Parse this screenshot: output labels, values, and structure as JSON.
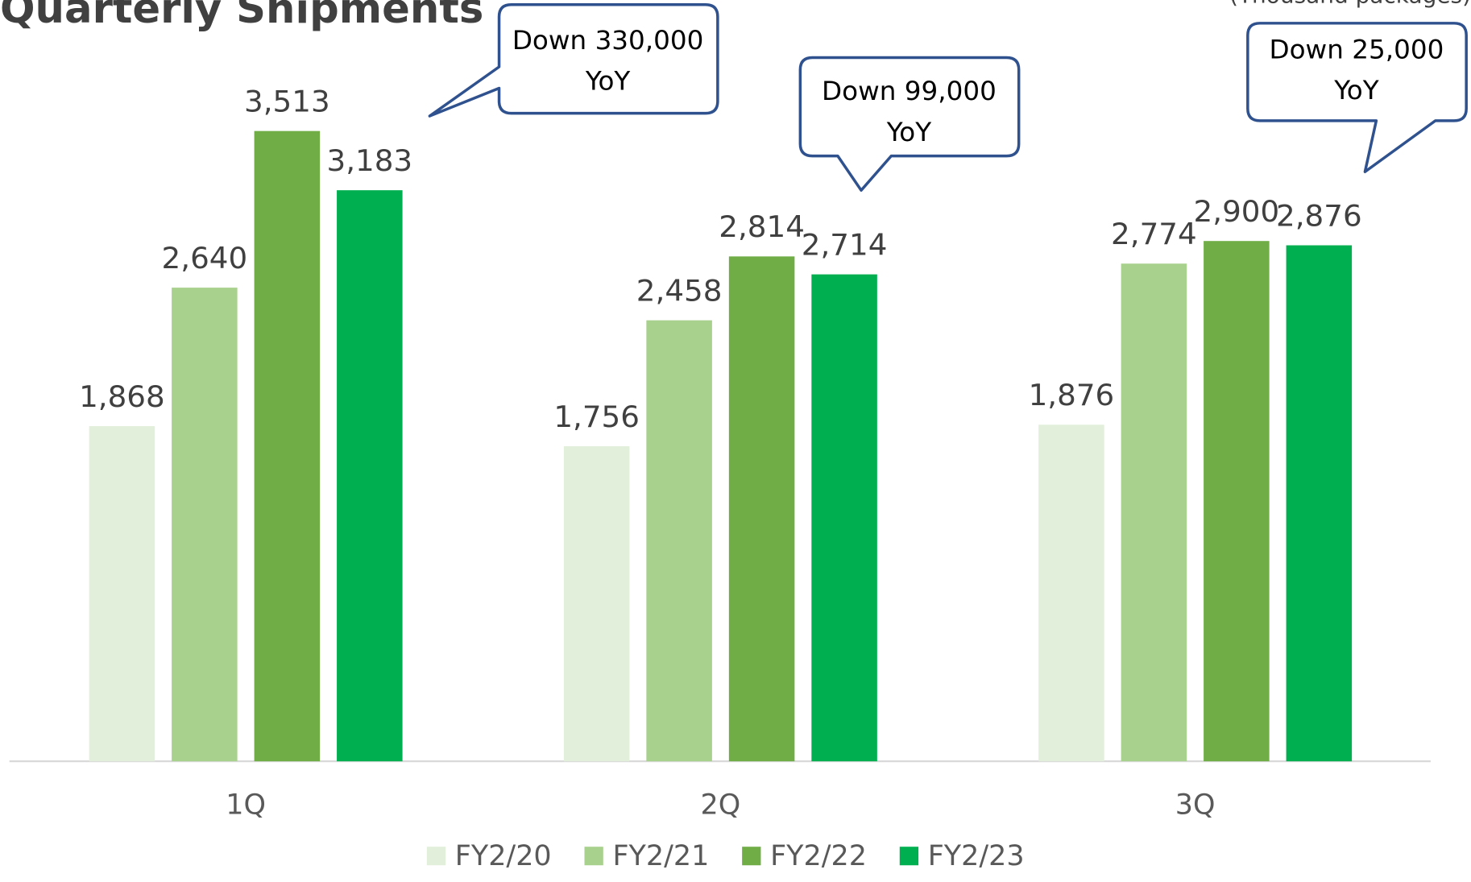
{
  "chart_data": {
    "type": "bar",
    "title": "Quarterly Shipments",
    "unit_label": "(Thousand packages)",
    "categories": [
      "1Q",
      "2Q",
      "3Q"
    ],
    "series": [
      {
        "name": "FY2/20",
        "color": "#e2efda",
        "values": [
          1868,
          1756,
          1876
        ],
        "value_labels": [
          "1,868",
          "1,756",
          "1,876"
        ]
      },
      {
        "name": "FY2/21",
        "color": "#a9d18e",
        "values": [
          2640,
          2458,
          2774
        ],
        "value_labels": [
          "2,640",
          "2,458",
          "2,774"
        ]
      },
      {
        "name": "FY2/22",
        "color": "#70ad47",
        "values": [
          3513,
          2814,
          2900
        ],
        "value_labels": [
          "3,513",
          "2,814",
          "2,900"
        ]
      },
      {
        "name": "FY2/23",
        "color": "#00b050",
        "values": [
          3183,
          2714,
          2876
        ],
        "value_labels": [
          "3,183",
          "2,714",
          "2,876"
        ]
      }
    ],
    "ylim": [
      0,
      4000
    ],
    "annotations": [
      {
        "lines": [
          "Down 330,000",
          "YoY"
        ]
      },
      {
        "lines": [
          "Down 99,000",
          "YoY"
        ]
      },
      {
        "lines": [
          "Down 25,000",
          "YoY"
        ]
      }
    ]
  }
}
